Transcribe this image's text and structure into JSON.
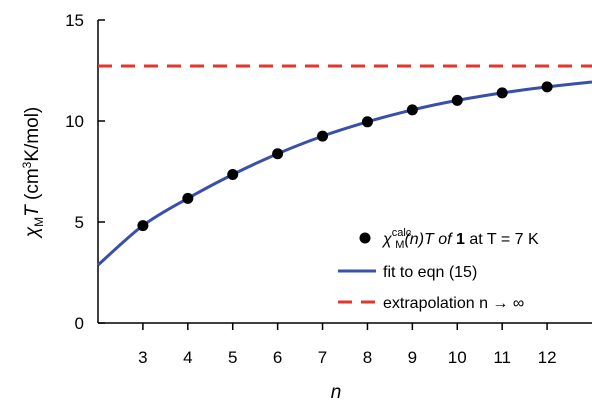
{
  "chart_data": {
    "type": "scatter",
    "xlabel": "n",
    "ylabel": {
      "chi": "χ",
      "sub": "M",
      "T": "T",
      "unit_pre": " (cm",
      "unit_exp": "3",
      "unit_post": "K/mol)"
    },
    "xlim": [
      2,
      13
    ],
    "ylim": [
      0,
      15
    ],
    "xticks": [
      3,
      4,
      5,
      6,
      7,
      8,
      9,
      10,
      11,
      12
    ],
    "yticks": [
      0,
      5,
      10,
      15
    ],
    "grid": false,
    "legend_position": "bottom-right",
    "series": [
      {
        "kind": "points",
        "x": [
          3,
          4,
          5,
          6,
          7,
          8,
          9,
          10,
          11,
          12
        ],
        "y": [
          4.82,
          6.17,
          7.35,
          8.38,
          9.25,
          9.96,
          10.55,
          11.02,
          11.39,
          11.69
        ],
        "color": "#000000"
      },
      {
        "kind": "curve",
        "x": [
          2,
          3,
          4,
          5,
          6,
          7,
          8,
          9,
          10,
          11,
          12,
          13
        ],
        "y": [
          2.87,
          4.82,
          6.17,
          7.35,
          8.38,
          9.25,
          9.96,
          10.55,
          11.02,
          11.39,
          11.69,
          11.93
        ],
        "color": "#3a4fa8"
      },
      {
        "kind": "hline",
        "y": 12.72,
        "color": "#e8352b"
      }
    ],
    "legend": {
      "points": {
        "chi": "χ",
        "sup": "calc",
        "sub": "M",
        "rest_a": "(n)T of ",
        "bold": "1",
        "rest_b": " at T = 7 K"
      },
      "fit": "fit to eqn (15)",
      "extrapolation": "extrapolation n → ∞"
    }
  }
}
